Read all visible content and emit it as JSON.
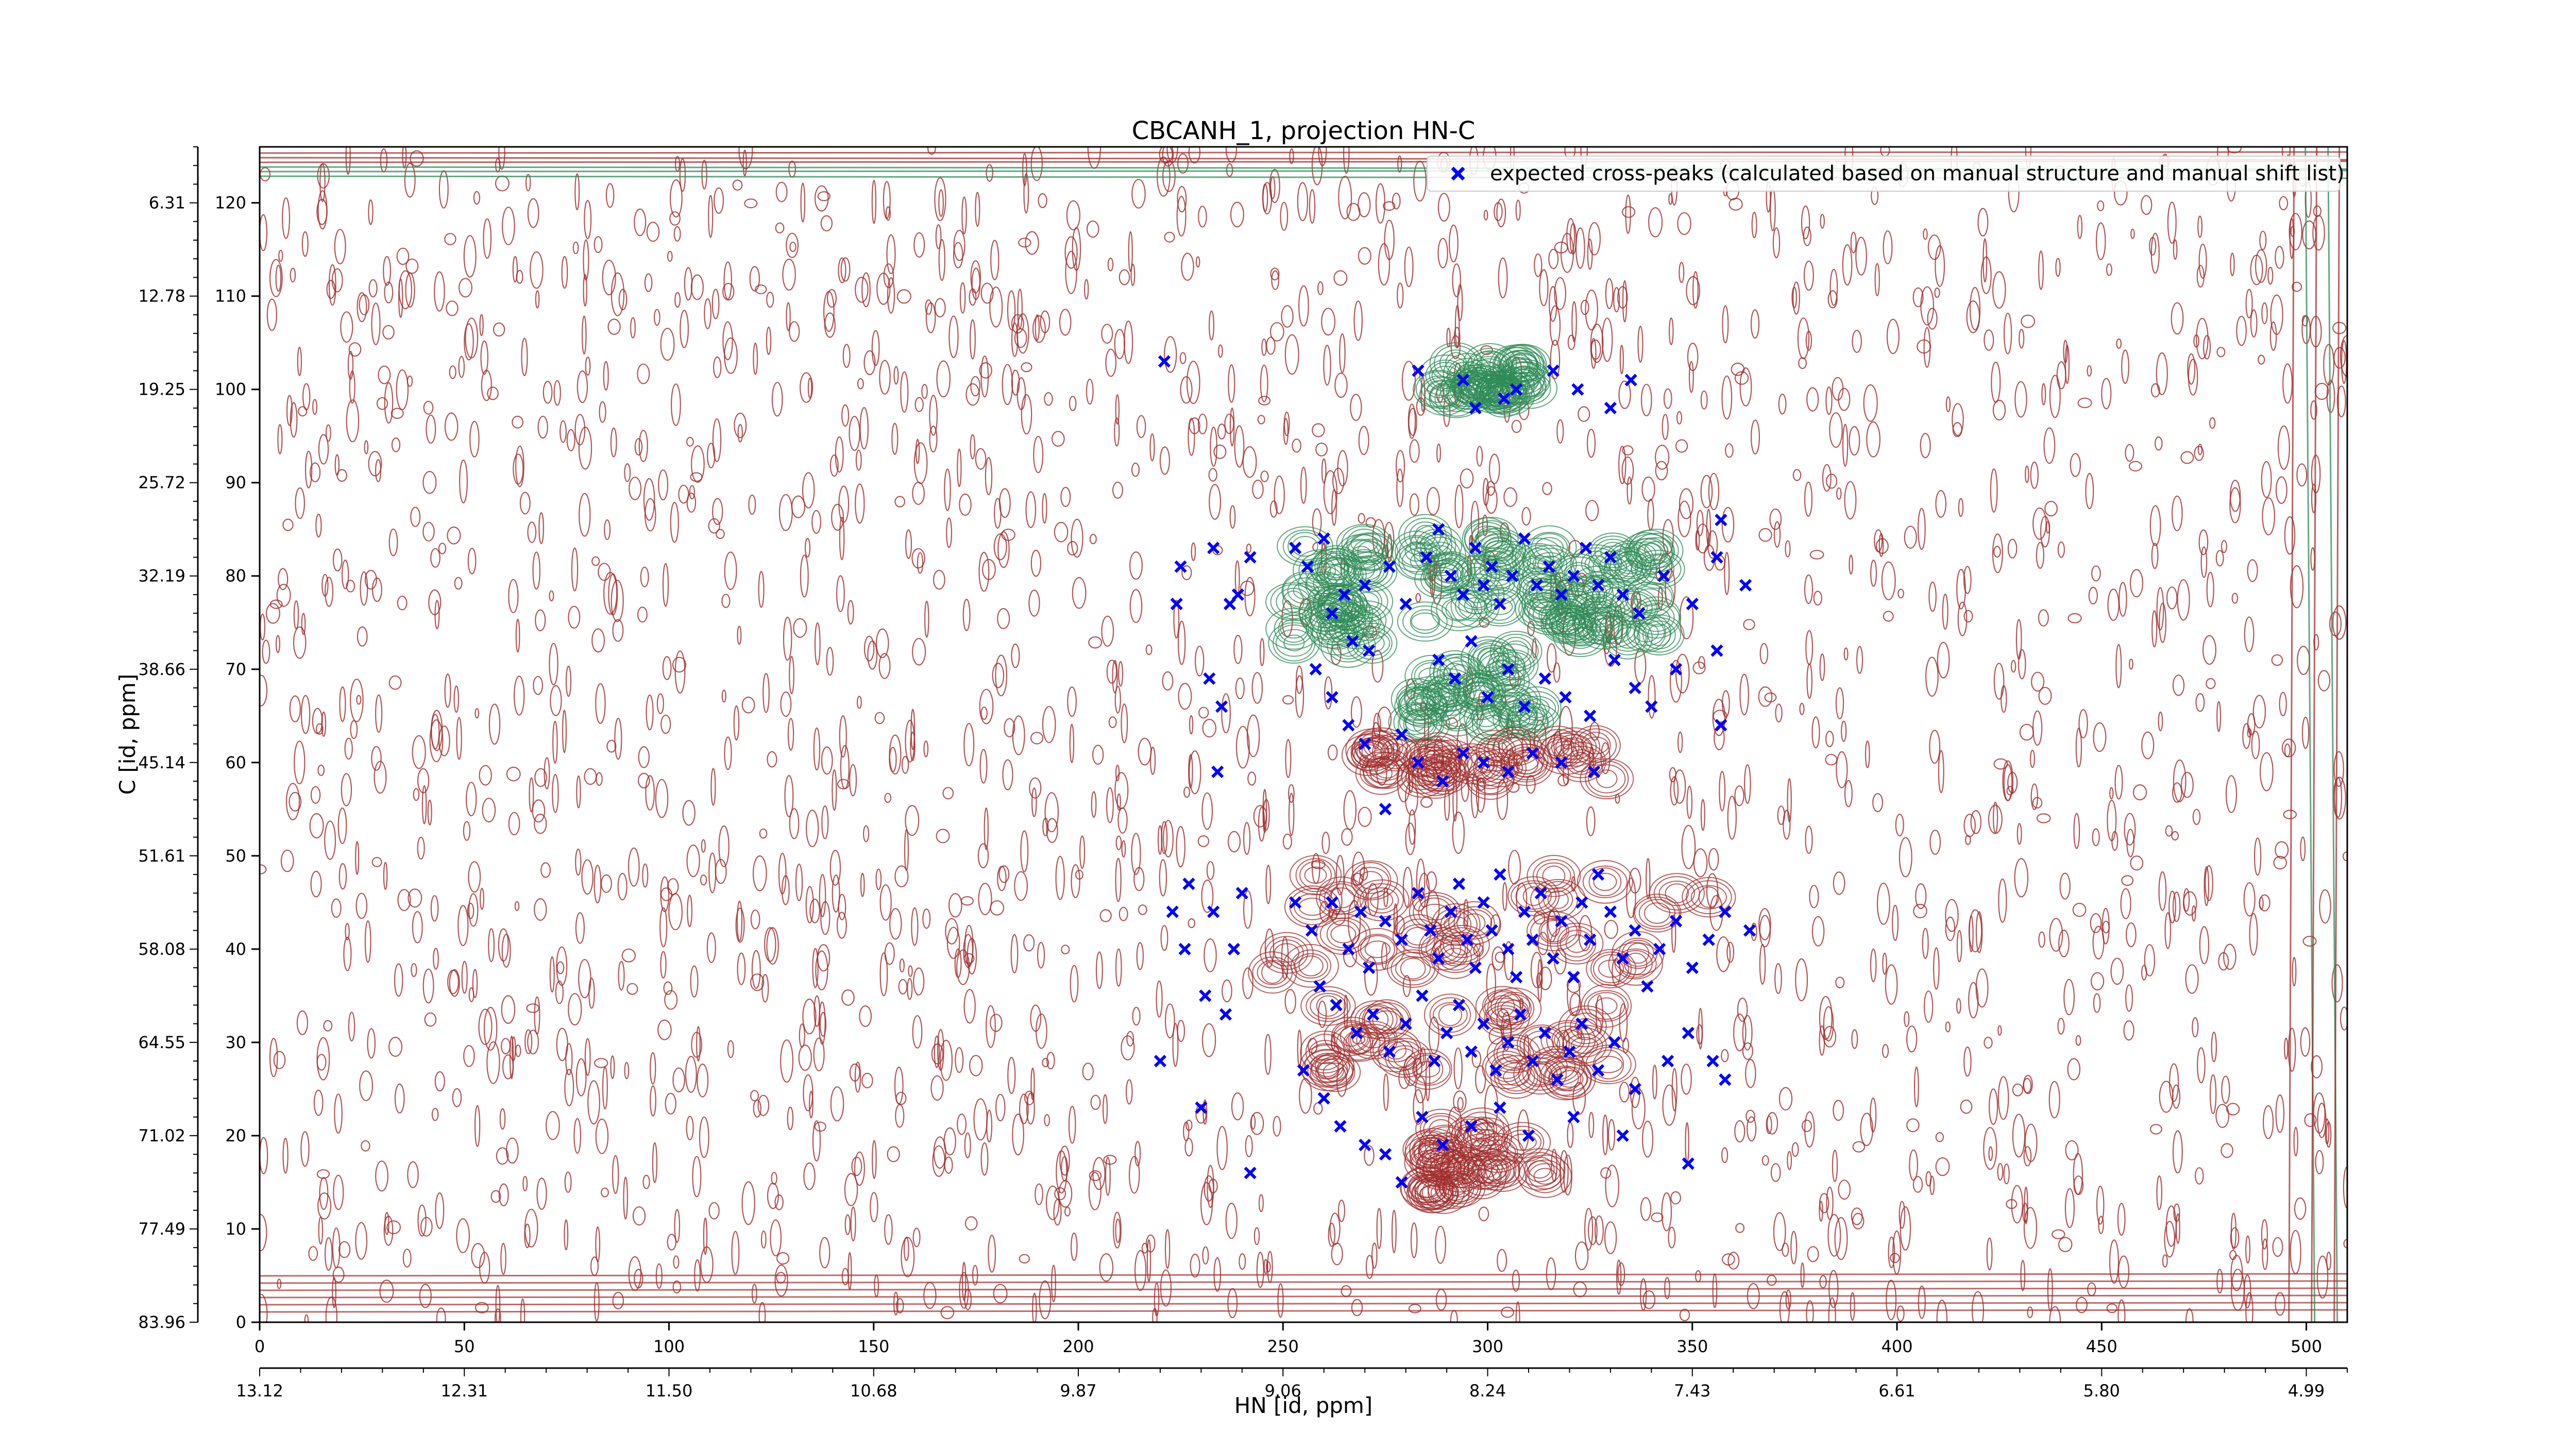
{
  "chart_data": {
    "type": "scatter",
    "title": "CBCANH_1, projection HN-C",
    "xlabel": "HN [id, ppm]",
    "ylabel": "C [id, ppm]",
    "xlim": [
      0,
      510
    ],
    "ylim": [
      0,
      126
    ],
    "x_ticks": [
      0,
      50,
      100,
      150,
      200,
      250,
      300,
      350,
      400,
      450,
      500
    ],
    "y_ticks": [
      0,
      10,
      20,
      30,
      40,
      50,
      60,
      70,
      80,
      90,
      100,
      110,
      120
    ],
    "secondary_x_ticks": [
      {
        "pos": 0,
        "label": "13.12"
      },
      {
        "pos": 50,
        "label": "12.31"
      },
      {
        "pos": 100,
        "label": "11.50"
      },
      {
        "pos": 150,
        "label": "10.68"
      },
      {
        "pos": 200,
        "label": "9.87"
      },
      {
        "pos": 250,
        "label": "9.06"
      },
      {
        "pos": 300,
        "label": "8.24"
      },
      {
        "pos": 350,
        "label": "7.43"
      },
      {
        "pos": 400,
        "label": "6.61"
      },
      {
        "pos": 450,
        "label": "5.80"
      },
      {
        "pos": 500,
        "label": "4.99"
      }
    ],
    "secondary_y_ticks": [
      {
        "pos": 0,
        "label": "83.96"
      },
      {
        "pos": 10,
        "label": "77.49"
      },
      {
        "pos": 20,
        "label": "71.02"
      },
      {
        "pos": 30,
        "label": "64.55"
      },
      {
        "pos": 40,
        "label": "58.08"
      },
      {
        "pos": 50,
        "label": "51.61"
      },
      {
        "pos": 60,
        "label": "45.14"
      },
      {
        "pos": 70,
        "label": "38.66"
      },
      {
        "pos": 80,
        "label": "32.19"
      },
      {
        "pos": 90,
        "label": "25.72"
      },
      {
        "pos": 100,
        "label": "19.25"
      },
      {
        "pos": 110,
        "label": "12.78"
      },
      {
        "pos": 120,
        "label": "6.31"
      }
    ],
    "legend": {
      "position": "top-right",
      "entries": [
        {
          "label": "expected cross-peaks (calculated based on manual structure and manual shift list)",
          "marker": "x",
          "color": "#0000ff"
        }
      ]
    },
    "colors": {
      "positive_contours": "#a02c2c",
      "negative_contours": "#2e8b57",
      "peaks": "#0000ff"
    },
    "grid": false,
    "contour_clusters": [
      {
        "x": 300,
        "y": 80,
        "sx": 18,
        "sy": 5,
        "sign": "negative"
      },
      {
        "x": 297,
        "y": 68,
        "sx": 16,
        "sy": 4,
        "sign": "negative"
      },
      {
        "x": 300,
        "y": 101,
        "sx": 13,
        "sy": 2,
        "sign": "negative"
      },
      {
        "x": 300,
        "y": 60,
        "sx": 30,
        "sy": 2,
        "sign": "positive"
      },
      {
        "x": 300,
        "y": 42,
        "sx": 55,
        "sy": 6,
        "sign": "positive"
      },
      {
        "x": 295,
        "y": 30,
        "sx": 35,
        "sy": 4,
        "sign": "positive"
      },
      {
        "x": 300,
        "y": 17,
        "sx": 15,
        "sy": 4,
        "sign": "positive"
      },
      {
        "x": 330,
        "y": 78,
        "sx": 12,
        "sy": 5,
        "sign": "negative"
      },
      {
        "x": 262,
        "y": 78,
        "sx": 10,
        "sy": 6,
        "sign": "negative"
      }
    ],
    "peaks": [
      [
        221,
        103
      ],
      [
        225,
        81
      ],
      [
        224,
        77
      ],
      [
        233,
        83
      ],
      [
        237,
        77
      ],
      [
        232,
        69
      ],
      [
        235,
        66
      ],
      [
        234,
        59
      ],
      [
        242,
        82
      ],
      [
        239,
        78
      ],
      [
        253,
        83
      ],
      [
        256,
        81
      ],
      [
        260,
        84
      ],
      [
        265,
        78
      ],
      [
        262,
        76
      ],
      [
        267,
        73
      ],
      [
        271,
        72
      ],
      [
        270,
        79
      ],
      [
        276,
        81
      ],
      [
        280,
        77
      ],
      [
        285,
        82
      ],
      [
        288,
        85
      ],
      [
        291,
        80
      ],
      [
        294,
        78
      ],
      [
        297,
        83
      ],
      [
        299,
        79
      ],
      [
        301,
        81
      ],
      [
        303,
        77
      ],
      [
        306,
        80
      ],
      [
        309,
        84
      ],
      [
        312,
        79
      ],
      [
        315,
        81
      ],
      [
        318,
        78
      ],
      [
        321,
        80
      ],
      [
        324,
        83
      ],
      [
        327,
        79
      ],
      [
        330,
        82
      ],
      [
        333,
        78
      ],
      [
        337,
        76
      ],
      [
        343,
        80
      ],
      [
        350,
        77
      ],
      [
        356,
        82
      ],
      [
        363,
        79
      ],
      [
        357,
        86
      ],
      [
        288,
        71
      ],
      [
        292,
        69
      ],
      [
        296,
        73
      ],
      [
        300,
        67
      ],
      [
        305,
        70
      ],
      [
        309,
        66
      ],
      [
        314,
        69
      ],
      [
        319,
        67
      ],
      [
        325,
        65
      ],
      [
        331,
        71
      ],
      [
        336,
        68
      ],
      [
        340,
        66
      ],
      [
        346,
        70
      ],
      [
        356,
        72
      ],
      [
        357,
        64
      ],
      [
        258,
        70
      ],
      [
        262,
        67
      ],
      [
        266,
        64
      ],
      [
        270,
        62
      ],
      [
        279,
        63
      ],
      [
        283,
        60
      ],
      [
        289,
        58
      ],
      [
        294,
        61
      ],
      [
        299,
        60
      ],
      [
        305,
        59
      ],
      [
        311,
        61
      ],
      [
        318,
        60
      ],
      [
        326,
        59
      ],
      [
        275,
        55
      ],
      [
        283,
        102
      ],
      [
        294,
        101
      ],
      [
        297,
        98
      ],
      [
        304,
        99
      ],
      [
        307,
        100
      ],
      [
        316,
        102
      ],
      [
        322,
        100
      ],
      [
        330,
        98
      ],
      [
        335,
        101
      ],
      [
        227,
        47
      ],
      [
        223,
        44
      ],
      [
        226,
        40
      ],
      [
        233,
        44
      ],
      [
        240,
        46
      ],
      [
        238,
        40
      ],
      [
        231,
        35
      ],
      [
        236,
        33
      ],
      [
        253,
        45
      ],
      [
        257,
        42
      ],
      [
        262,
        45
      ],
      [
        266,
        40
      ],
      [
        269,
        44
      ],
      [
        271,
        38
      ],
      [
        275,
        43
      ],
      [
        279,
        41
      ],
      [
        283,
        46
      ],
      [
        286,
        42
      ],
      [
        288,
        39
      ],
      [
        291,
        44
      ],
      [
        293,
        47
      ],
      [
        295,
        41
      ],
      [
        297,
        38
      ],
      [
        299,
        45
      ],
      [
        301,
        42
      ],
      [
        303,
        48
      ],
      [
        305,
        40
      ],
      [
        307,
        37
      ],
      [
        309,
        44
      ],
      [
        311,
        41
      ],
      [
        313,
        46
      ],
      [
        316,
        39
      ],
      [
        318,
        43
      ],
      [
        321,
        37
      ],
      [
        323,
        45
      ],
      [
        325,
        41
      ],
      [
        327,
        48
      ],
      [
        330,
        44
      ],
      [
        333,
        39
      ],
      [
        336,
        42
      ],
      [
        339,
        36
      ],
      [
        342,
        40
      ],
      [
        346,
        43
      ],
      [
        350,
        38
      ],
      [
        354,
        41
      ],
      [
        358,
        44
      ],
      [
        364,
        42
      ],
      [
        259,
        36
      ],
      [
        263,
        34
      ],
      [
        268,
        31
      ],
      [
        272,
        33
      ],
      [
        276,
        29
      ],
      [
        280,
        32
      ],
      [
        284,
        35
      ],
      [
        287,
        28
      ],
      [
        290,
        31
      ],
      [
        293,
        34
      ],
      [
        296,
        29
      ],
      [
        299,
        32
      ],
      [
        302,
        27
      ],
      [
        305,
        30
      ],
      [
        308,
        33
      ],
      [
        311,
        28
      ],
      [
        314,
        31
      ],
      [
        317,
        26
      ],
      [
        320,
        29
      ],
      [
        323,
        32
      ],
      [
        327,
        27
      ],
      [
        331,
        30
      ],
      [
        336,
        25
      ],
      [
        344,
        28
      ],
      [
        349,
        31
      ],
      [
        255,
        27
      ],
      [
        260,
        24
      ],
      [
        264,
        21
      ],
      [
        270,
        19
      ],
      [
        275,
        18
      ],
      [
        279,
        15
      ],
      [
        284,
        22
      ],
      [
        289,
        19
      ],
      [
        296,
        21
      ],
      [
        303,
        23
      ],
      [
        310,
        20
      ],
      [
        321,
        22
      ],
      [
        333,
        20
      ],
      [
        349,
        17
      ],
      [
        242,
        16
      ],
      [
        230,
        23
      ],
      [
        220,
        28
      ],
      [
        355,
        28
      ],
      [
        358,
        26
      ]
    ]
  }
}
